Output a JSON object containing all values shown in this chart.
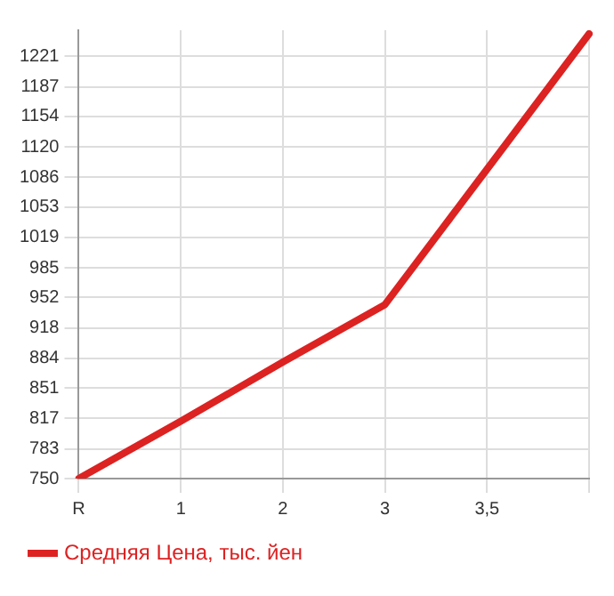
{
  "chart_data": {
    "type": "line",
    "categories": [
      "R",
      "1",
      "2",
      "3",
      "3,5",
      null
    ],
    "series": [
      {
        "name": "Средняя Цена, тыс. йен",
        "color": "#dd2222",
        "values": [
          750,
          814,
          880,
          944,
          1095,
          1246
        ]
      }
    ],
    "ylim": [
      750,
      1250
    ],
    "yticks": [
      750,
      783,
      817,
      851,
      884,
      918,
      952,
      985,
      1019,
      1053,
      1086,
      1120,
      1154,
      1187,
      1221
    ],
    "grid": true,
    "legend": "bottom left",
    "marker": "none",
    "line_style": "solid"
  }
}
